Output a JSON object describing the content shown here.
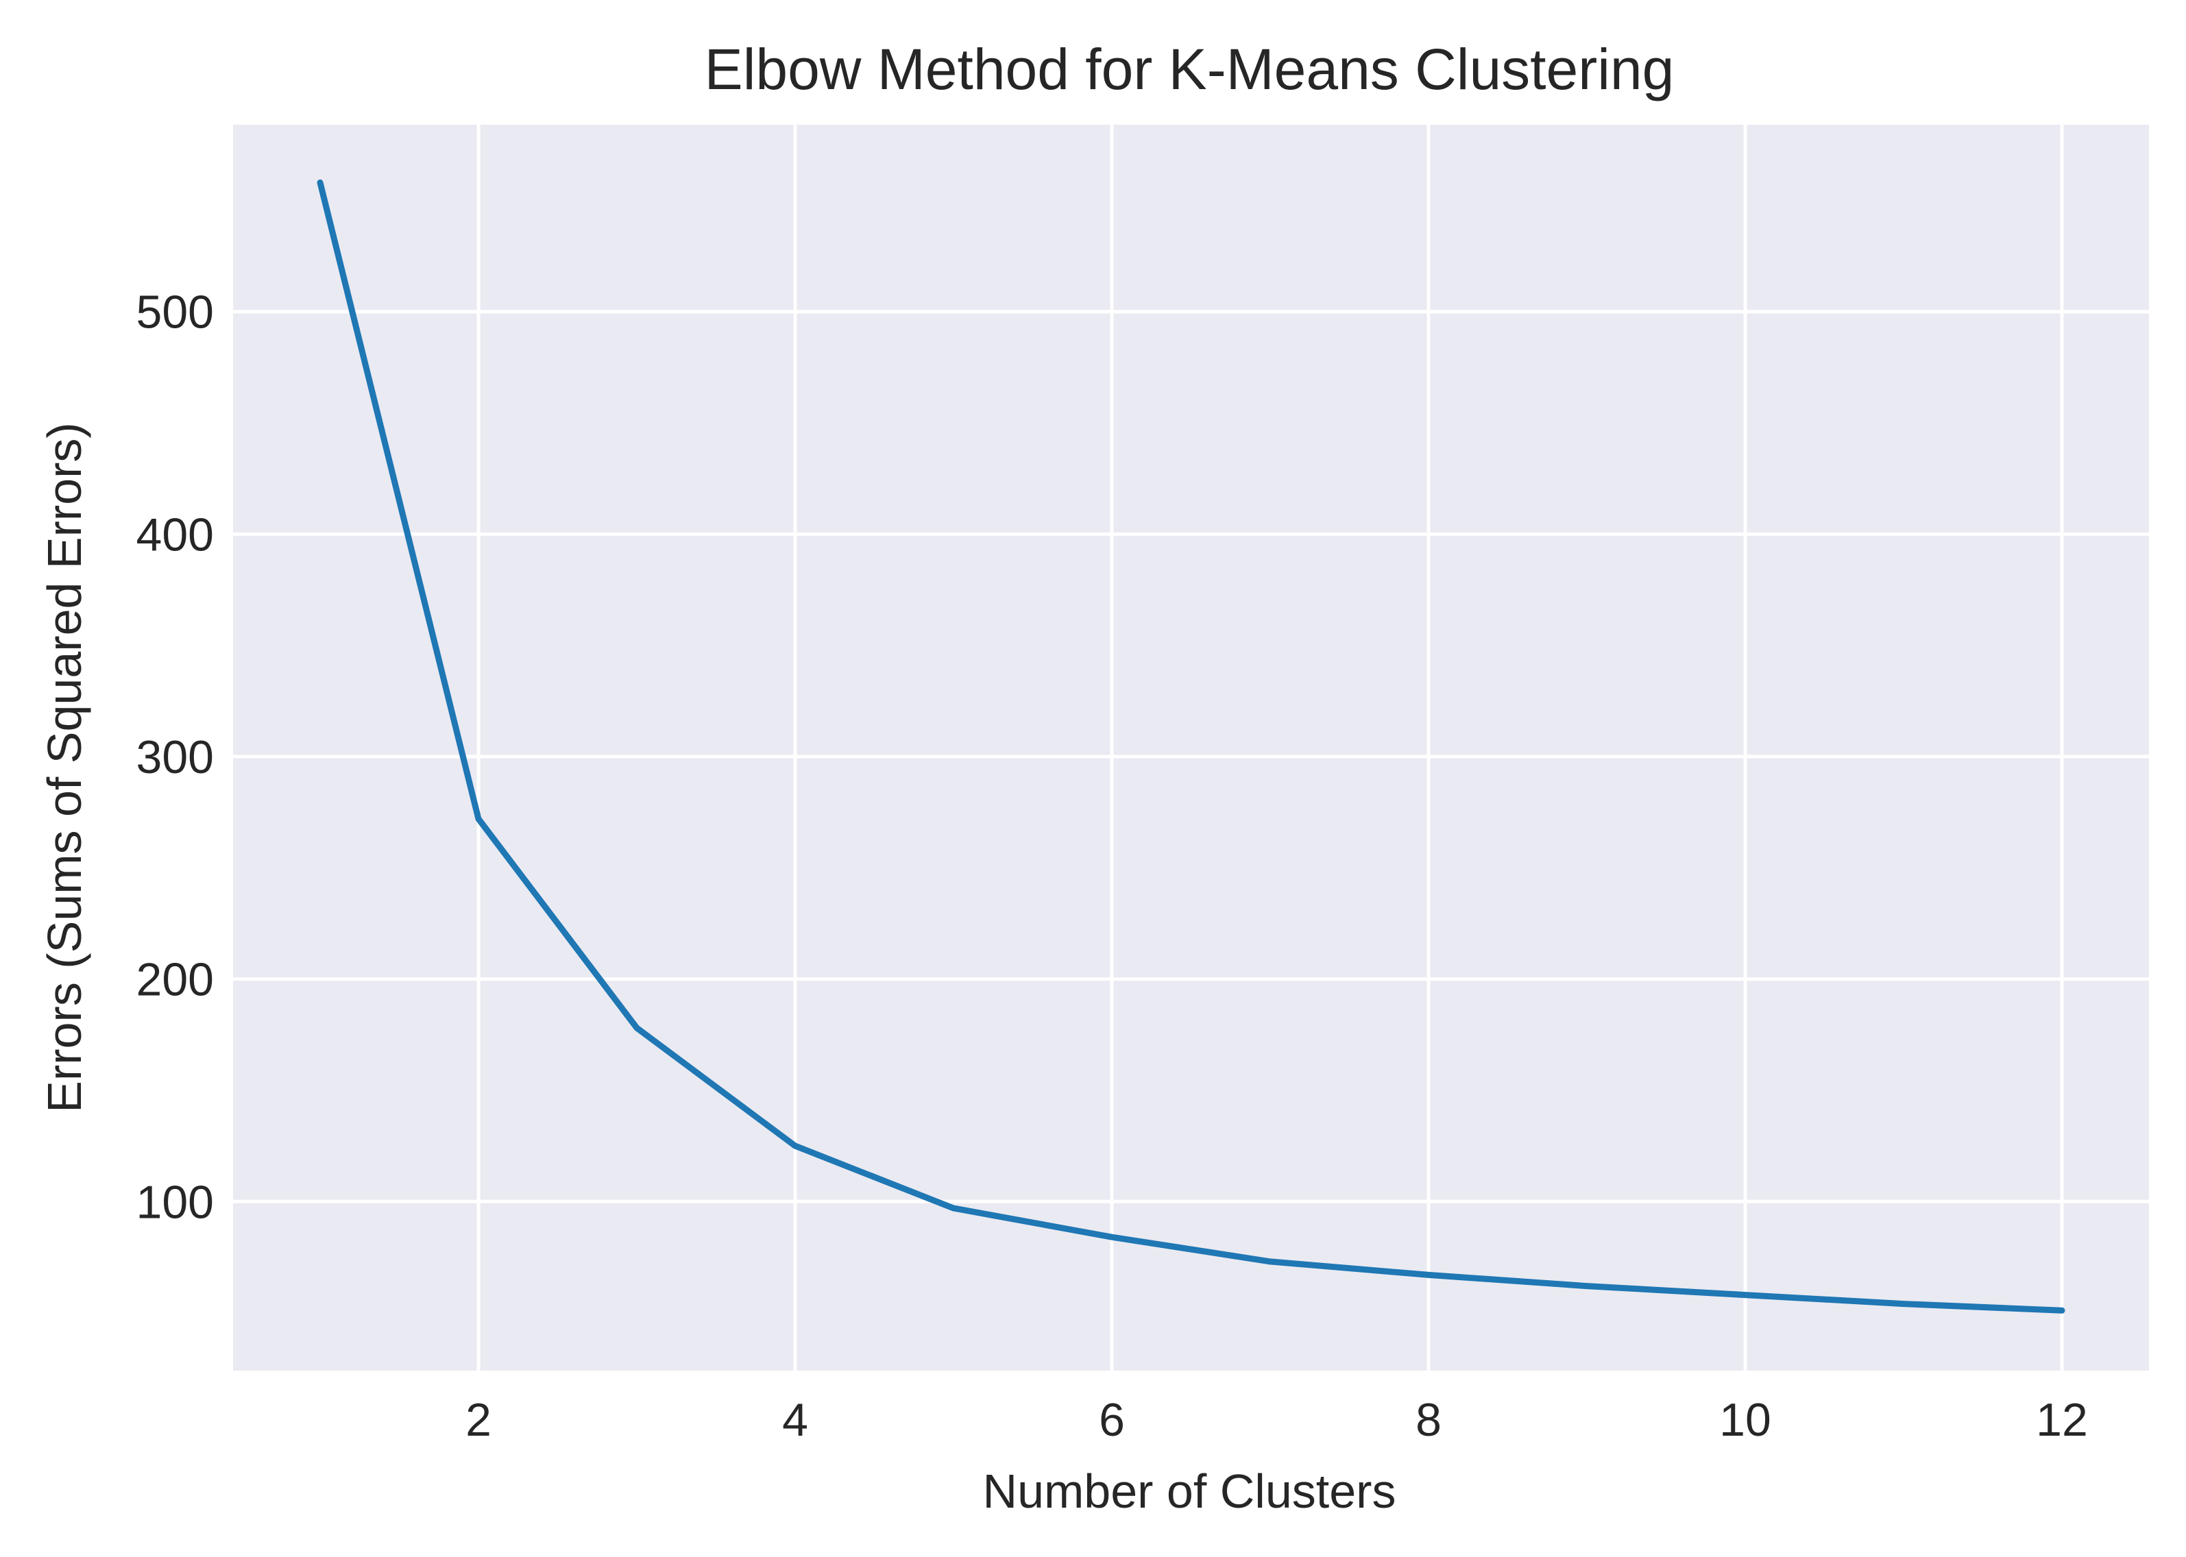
{
  "chart_data": {
    "type": "line",
    "title": "Elbow Method for K-Means Clustering",
    "xlabel": "Number of Clusters",
    "ylabel": "Errors (Sums of Squared Errors)",
    "x": [
      1,
      2,
      3,
      4,
      5,
      6,
      7,
      8,
      9,
      10,
      11,
      12
    ],
    "series": [
      {
        "values": [
          558,
          272,
          178,
          125,
          97,
          84,
          73,
          67,
          62,
          58,
          54,
          51
        ],
        "color": "#1f77b4"
      }
    ],
    "xlim": [
      0.45,
      12.55
    ],
    "ylim": [
      24,
      584
    ],
    "xticks": [
      2,
      4,
      6,
      8,
      10,
      12
    ],
    "yticks": [
      100,
      200,
      300,
      400,
      500
    ],
    "grid": true,
    "legend": "none",
    "style": {
      "plot_background": "#eaeaf2",
      "grid_color": "#ffffff",
      "text_color": "#262626"
    }
  }
}
